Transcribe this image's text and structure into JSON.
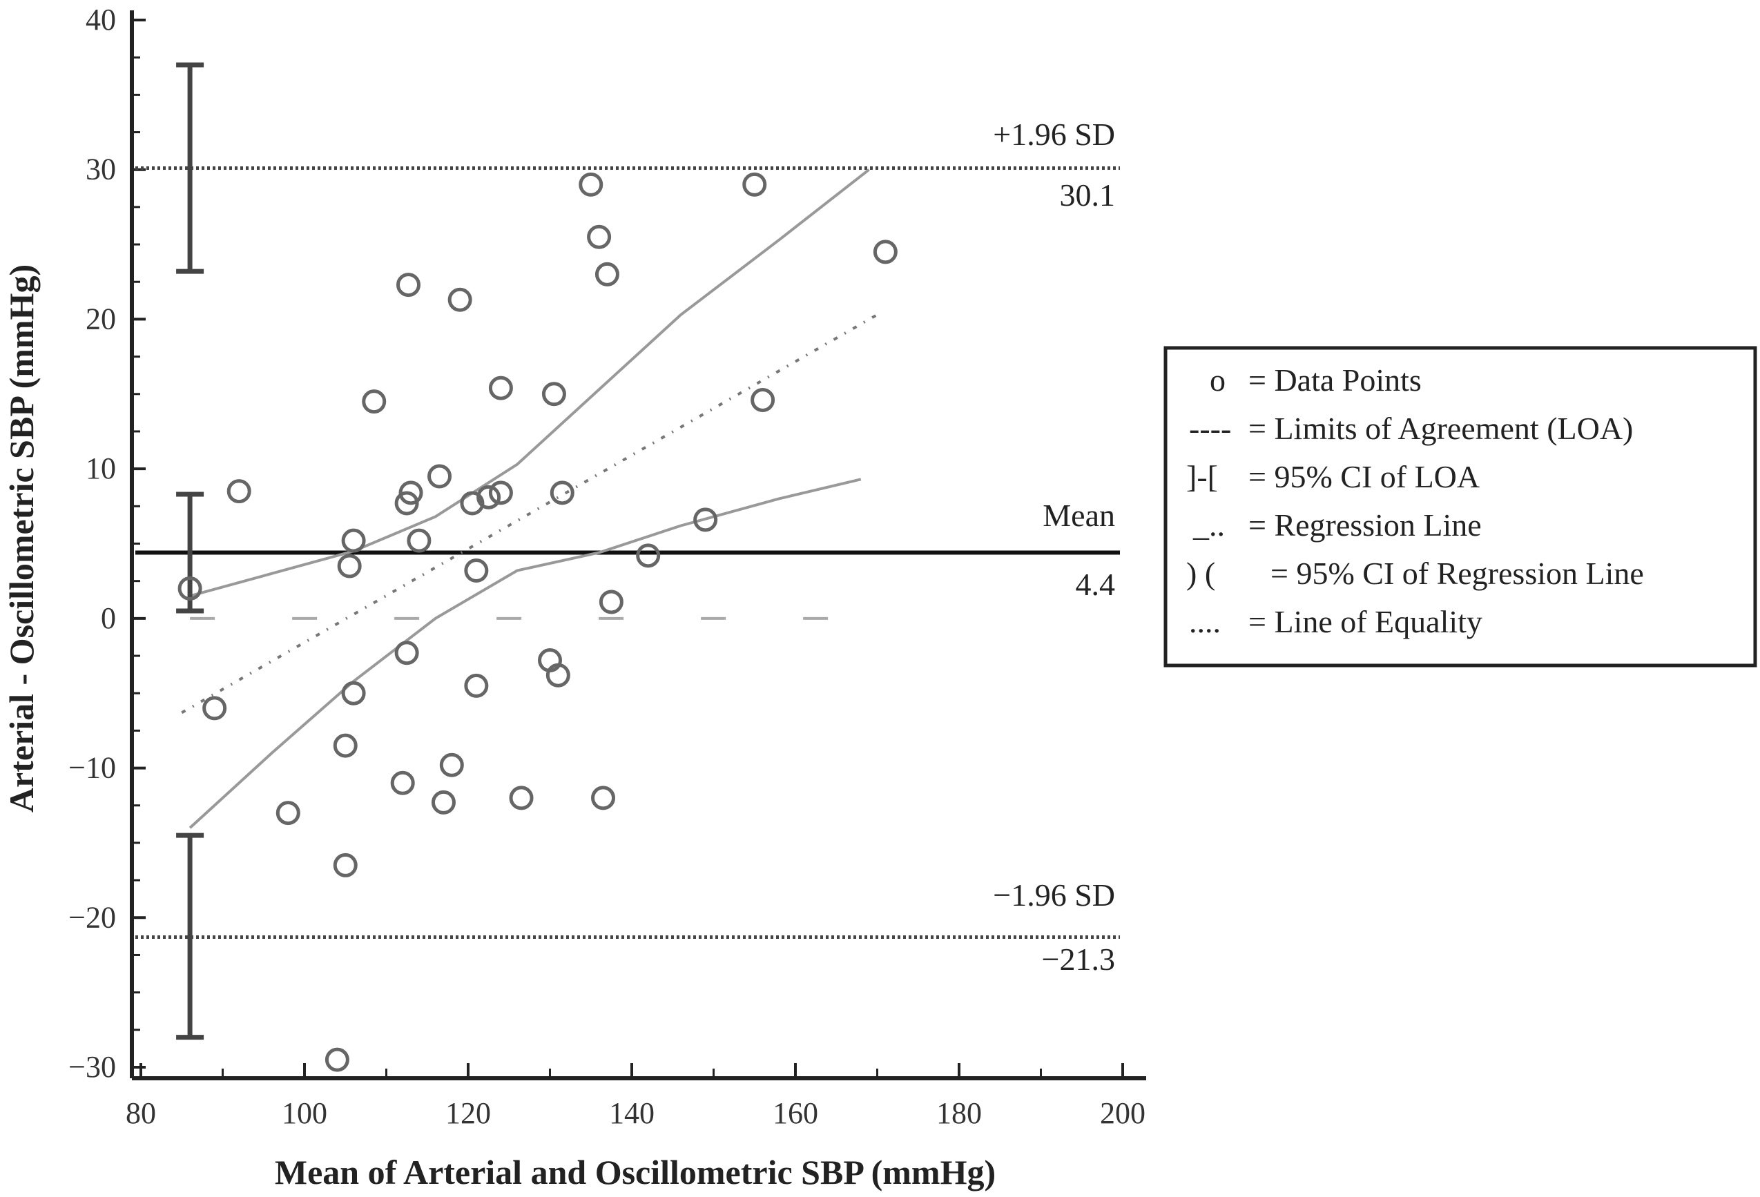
{
  "chart_data": {
    "type": "scatter",
    "xlabel": "Mean of Arterial and Oscillometric SBP (mmHg)",
    "ylabel": "Arterial - Oscillometric SBP (mmHg)",
    "xlim": [
      80,
      200
    ],
    "ylim": [
      -30,
      40
    ],
    "x_ticks": [
      80,
      100,
      120,
      140,
      160,
      180,
      200
    ],
    "y_ticks": [
      -30,
      -20,
      -10,
      0,
      10,
      20,
      30,
      40
    ],
    "grid": false,
    "points": [
      {
        "x": 86,
        "y": 2
      },
      {
        "x": 89,
        "y": -6
      },
      {
        "x": 92,
        "y": 8.5
      },
      {
        "x": 98,
        "y": -13
      },
      {
        "x": 104,
        "y": -29.5
      },
      {
        "x": 105,
        "y": -8.5
      },
      {
        "x": 105,
        "y": -16.5
      },
      {
        "x": 105.5,
        "y": 3.5
      },
      {
        "x": 106,
        "y": -5
      },
      {
        "x": 106,
        "y": 5.2
      },
      {
        "x": 108.5,
        "y": 14.5
      },
      {
        "x": 112,
        "y": -11
      },
      {
        "x": 112.5,
        "y": 7.7
      },
      {
        "x": 112.5,
        "y": -2.3
      },
      {
        "x": 112.7,
        "y": 22.3
      },
      {
        "x": 113,
        "y": 8.4
      },
      {
        "x": 114,
        "y": 5.2
      },
      {
        "x": 116.5,
        "y": 9.5
      },
      {
        "x": 117,
        "y": -12.3
      },
      {
        "x": 118,
        "y": -9.8
      },
      {
        "x": 119,
        "y": 21.3
      },
      {
        "x": 120.5,
        "y": 7.7
      },
      {
        "x": 121,
        "y": 3.2
      },
      {
        "x": 121,
        "y": -4.5
      },
      {
        "x": 122.5,
        "y": 8.1
      },
      {
        "x": 124,
        "y": 15.4
      },
      {
        "x": 124,
        "y": 8.4
      },
      {
        "x": 126.5,
        "y": -12
      },
      {
        "x": 130,
        "y": -2.8
      },
      {
        "x": 130.5,
        "y": 15
      },
      {
        "x": 131,
        "y": -3.8
      },
      {
        "x": 131.5,
        "y": 8.4
      },
      {
        "x": 135,
        "y": 29
      },
      {
        "x": 136,
        "y": 25.5
      },
      {
        "x": 136.5,
        "y": -12
      },
      {
        "x": 137,
        "y": 23
      },
      {
        "x": 137.5,
        "y": 1.1
      },
      {
        "x": 142,
        "y": 4.2
      },
      {
        "x": 149,
        "y": 6.6
      },
      {
        "x": 155,
        "y": 29
      },
      {
        "x": 156,
        "y": 14.6
      },
      {
        "x": 171,
        "y": 24.5
      }
    ],
    "mean_line": {
      "y": 4.4,
      "label": "Mean",
      "value_label": "4.4"
    },
    "upper_loa": {
      "y": 30.1,
      "label": "+1.96 SD",
      "value_label": "30.1"
    },
    "lower_loa": {
      "y": -21.3,
      "label": "−1.96 SD",
      "value_label": "−21.3"
    },
    "ci_bars": [
      {
        "name": "upper",
        "x": 86,
        "low": 23.2,
        "high": 37
      },
      {
        "name": "mean",
        "x": 86,
        "low": 0.5,
        "high": 8.3
      },
      {
        "name": "lower",
        "x": 86,
        "low": -28,
        "high": -14.5
      }
    ],
    "regression_line": {
      "x": [
        85,
        170
      ],
      "y": [
        -6.3,
        20.3
      ]
    },
    "regression_ci_upper": {
      "x": [
        86,
        96,
        106,
        116,
        126,
        136,
        146,
        158,
        169
      ],
      "y": [
        1.5,
        3,
        4.5,
        6.8,
        10.3,
        15.3,
        20.3,
        25.3,
        30
      ]
    },
    "regression_ci_lower": {
      "x": [
        86,
        96,
        106,
        116,
        126,
        136,
        146,
        158,
        168
      ],
      "y": [
        -14,
        -9,
        -4.2,
        0,
        3.2,
        4.4,
        6.2,
        8,
        9.3
      ]
    },
    "equality_line": {
      "y": 0
    },
    "legend": {
      "position": "right",
      "entries": [
        {
          "symbol": "o",
          "label": "= Data Points"
        },
        {
          "symbol": "----",
          "label": "= Limits of Agreement (LOA)"
        },
        {
          "symbol": "]-[",
          "label": "= 95% CI of LOA"
        },
        {
          "symbol": "_..",
          "label": "= Regression Line"
        },
        {
          "symbol": ") (",
          "label": "= 95% CI of Regression Line"
        },
        {
          "symbol": "....",
          "label": "= Line of Equality"
        }
      ]
    }
  }
}
